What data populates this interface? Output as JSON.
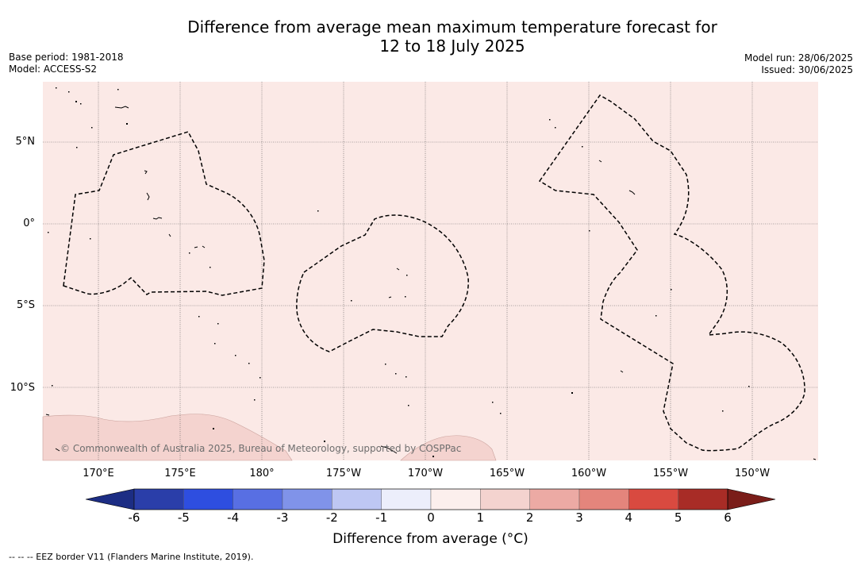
{
  "title": {
    "line1": "Difference from average mean maximum temperature forecast for",
    "line2": "12 to 18 July 2025"
  },
  "meta": {
    "base_period": "Base period: 1981-2018",
    "model": "Model: ACCESS-S2",
    "model_run": "Model run: 28/06/2025",
    "issued": "Issued: 30/06/2025"
  },
  "map": {
    "background_color": "#fbe9e6",
    "warm_patch_color": "#f4d3cf",
    "lon_ticks": [
      "170°E",
      "175°E",
      "180°",
      "175°W",
      "170°W",
      "165°W",
      "160°W",
      "155°W",
      "150°W"
    ],
    "lat_ticks": [
      "5°N",
      "0°",
      "5°S",
      "10°S"
    ],
    "copyright": "© Commonwealth of Australia 2025, Bureau of Meteorology, supported by COSPPac"
  },
  "colorbar": {
    "label": "Difference from average (°C)",
    "ticks": [
      "-6",
      "-5",
      "-4",
      "-3",
      "-2",
      "-1",
      "0",
      "1",
      "2",
      "3",
      "4",
      "5",
      "6"
    ],
    "colors": {
      "below": "#1c2d84",
      "bins": [
        "#2a3ea9",
        "#2e4ee0",
        "#586fe3",
        "#8093e9",
        "#bec7f3",
        "#eceefb",
        "#fcefed",
        "#f4d3cf",
        "#ecaaa4",
        "#e4857c",
        "#d94a40",
        "#a82c26"
      ],
      "above": "#7a1d19"
    }
  },
  "footnote": "-- -- -- EEZ border V11 (Flanders Marine Institute, 2019)."
}
